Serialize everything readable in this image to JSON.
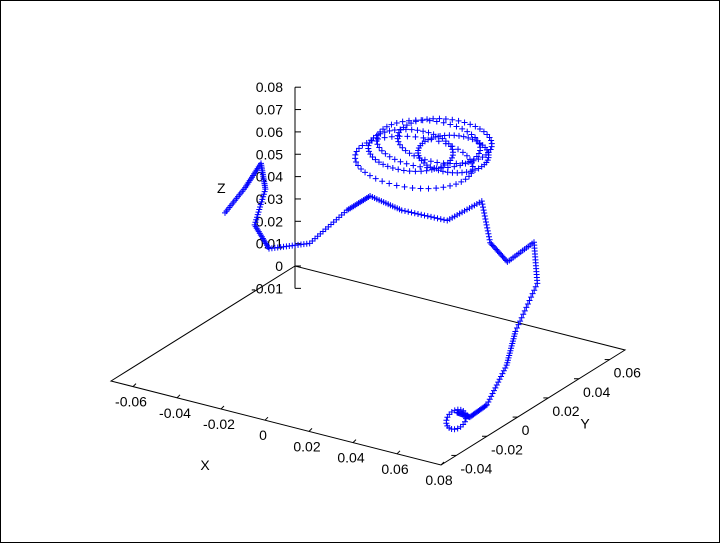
{
  "chart_data": {
    "type": "scatter",
    "projection": "3d",
    "marker": "+",
    "marker_color": "#0000ff",
    "axes": {
      "x": {
        "label": "X",
        "range": [
          -0.07,
          0.08
        ],
        "ticks": [
          "-0.06",
          "-0.04",
          "-0.02",
          "0",
          "0.02",
          "0.04",
          "0.06",
          "0.08"
        ]
      },
      "y": {
        "label": "Y",
        "range": [
          -0.05,
          0.07
        ],
        "ticks": [
          "-0.04",
          "-0.02",
          "0",
          "0.02",
          "0.04",
          "0.06"
        ]
      },
      "z": {
        "label": "Z",
        "range": [
          -0.01,
          0.08
        ],
        "ticks": [
          "-0.01",
          "0",
          "0.01",
          "0.02",
          "0.03",
          "0.04",
          "0.05",
          "0.06",
          "0.07",
          "0.08"
        ]
      }
    },
    "grid": false,
    "legend": "none",
    "description_points": [
      {
        "x": -0.06,
        "y": 0.01,
        "z": 0.052
      },
      {
        "x": -0.055,
        "y": 0.016,
        "z": 0.062
      },
      {
        "x": -0.052,
        "y": 0.022,
        "z": 0.071
      },
      {
        "x": -0.05,
        "y": 0.022,
        "z": 0.06
      },
      {
        "x": -0.05,
        "y": 0.015,
        "z": 0.047
      },
      {
        "x": -0.04,
        "y": 0.01,
        "z": 0.041
      },
      {
        "x": -0.025,
        "y": 0.015,
        "z": 0.045
      },
      {
        "x": -0.015,
        "y": 0.025,
        "z": 0.058
      },
      {
        "x": -0.008,
        "y": 0.03,
        "z": 0.064
      },
      {
        "x": 0.005,
        "y": 0.032,
        "z": 0.06
      },
      {
        "x": 0.025,
        "y": 0.033,
        "z": 0.06
      },
      {
        "x": 0.04,
        "y": 0.034,
        "z": 0.072
      },
      {
        "x": 0.048,
        "y": 0.028,
        "z": 0.058
      },
      {
        "x": 0.06,
        "y": 0.022,
        "z": 0.055
      },
      {
        "x": 0.07,
        "y": 0.025,
        "z": 0.065
      },
      {
        "x": 0.075,
        "y": 0.02,
        "z": 0.05
      },
      {
        "x": 0.072,
        "y": 0.01,
        "z": 0.032
      },
      {
        "x": 0.075,
        "y": 0.0,
        "z": 0.022
      },
      {
        "x": 0.073,
        "y": -0.01,
        "z": 0.008
      },
      {
        "x": 0.068,
        "y": -0.014,
        "z": 0.003
      },
      {
        "x": 0.065,
        "y": -0.018,
        "z": 0.006
      }
    ]
  }
}
